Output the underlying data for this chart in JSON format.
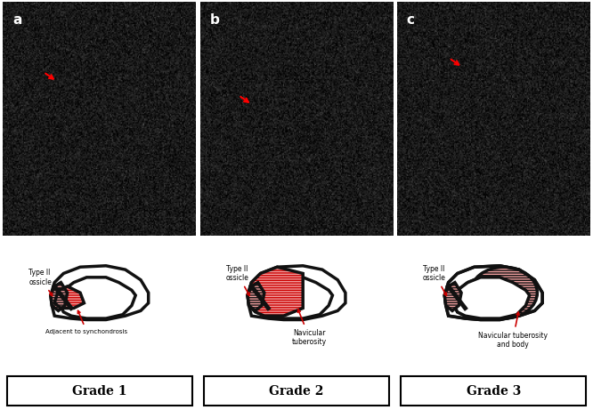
{
  "panel_labels": [
    "a",
    "b",
    "c"
  ],
  "grade_labels": [
    "Grade 1",
    "Grade 2",
    "Grade 3"
  ],
  "diagram_annotations": [
    {
      "ossicle_label": "Type II\nossicle",
      "arrow_label": "Adjacent to synchondrosis"
    },
    {
      "ossicle_label": "Type II\nossicle",
      "arrow_label": "Navicular\ntuberosity"
    },
    {
      "ossicle_label": "Type II\nossicle",
      "arrow_label": "Navicular tuberosity\nand body"
    }
  ],
  "hatch_color": "#cc0000",
  "fill_color": "#f0a0a0",
  "outline_color": "#111111",
  "bg_color": "#ffffff",
  "arrow_color": "#cc0000",
  "grade_text_color": "#000000"
}
